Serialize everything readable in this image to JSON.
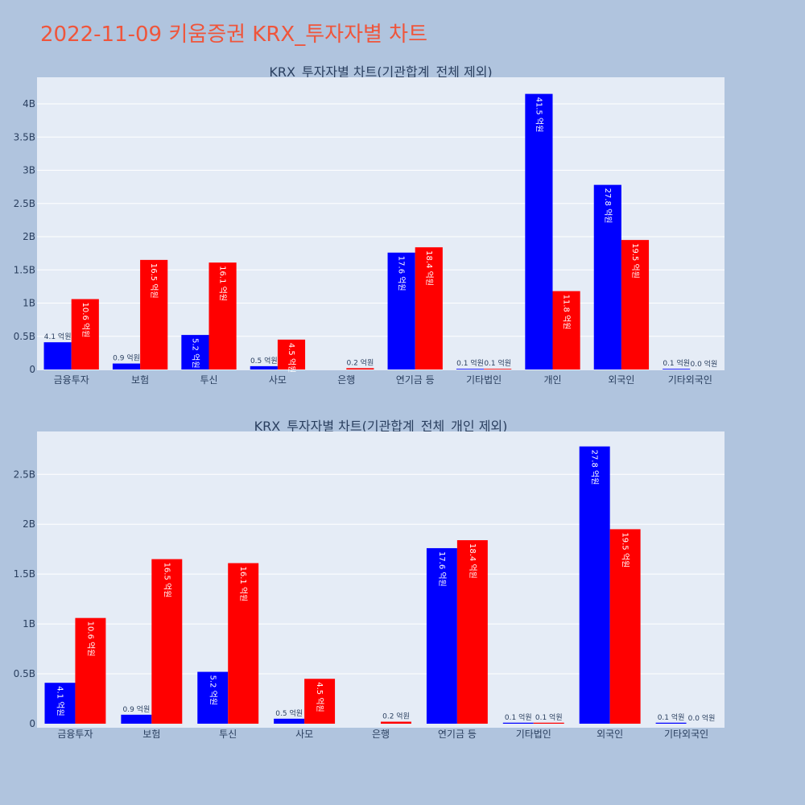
{
  "page_title": "2022-11-09 키움증권 KRX_투자자별 차트",
  "colors": {
    "series_a": "#0000ff",
    "series_b": "#ff0000",
    "plot_bg": "#e5ecf6",
    "page_bg": "#b0c4de",
    "title": "#ef553b"
  },
  "chart_data": [
    {
      "type": "bar",
      "title": "KRX_투자자별 차트(기관합계_전체 제외)",
      "categories": [
        "금융투자",
        "보험",
        "투신",
        "사모",
        "은행",
        "연기금 등",
        "기타법인",
        "개인",
        "외국인",
        "기타외국인"
      ],
      "ylim": [
        0,
        4.4
      ],
      "yticks": [
        "0",
        "0.5B",
        "1B",
        "1.5B",
        "2B",
        "2.5B",
        "3B",
        "3.5B",
        "4B"
      ],
      "ytick_values": [
        0,
        0.5,
        1,
        1.5,
        2,
        2.5,
        3,
        3.5,
        4
      ],
      "grid": true,
      "series": [
        {
          "values": [
            0.41,
            0.09,
            0.52,
            0.05,
            0,
            1.76,
            0.01,
            4.15,
            2.78,
            0.01
          ],
          "labels": [
            "4.1 억원",
            "0.9 억원",
            "5.2 억원",
            "0.5 억원",
            "",
            "17.6 억원",
            "0.1 억원",
            "41.5 억원",
            "27.8 억원",
            "0.1 억원"
          ]
        },
        {
          "values": [
            1.06,
            1.65,
            1.61,
            0.45,
            0.02,
            1.84,
            0.01,
            1.18,
            1.95,
            0
          ],
          "labels": [
            "10.6 억원",
            "16.5 억원",
            "16.1 억원",
            "4.5 억원",
            "0.2 억원",
            "18.4 억원",
            "0.1 억원",
            "11.8 억원",
            "19.5 억원",
            "0.0 억원"
          ]
        }
      ]
    },
    {
      "type": "bar",
      "title": "KRX_투자자별 차트(기관합계_전체_개인 제외)",
      "categories": [
        "금융투자",
        "보험",
        "투신",
        "사모",
        "은행",
        "연기금 등",
        "기타법인",
        "외국인",
        "기타외국인"
      ],
      "ylim": [
        0,
        2.93
      ],
      "yticks": [
        "0",
        "0.5B",
        "1B",
        "1.5B",
        "2B",
        "2.5B"
      ],
      "ytick_values": [
        0,
        0.5,
        1,
        1.5,
        2,
        2.5
      ],
      "grid": true,
      "series": [
        {
          "values": [
            0.41,
            0.09,
            0.52,
            0.05,
            0,
            1.76,
            0.01,
            2.78,
            0.01
          ],
          "labels": [
            "4.1 억원",
            "0.9 억원",
            "5.2 억원",
            "0.5 억원",
            "",
            "17.6 억원",
            "0.1 억원",
            "27.8 억원",
            "0.1 억원"
          ]
        },
        {
          "values": [
            1.06,
            1.65,
            1.61,
            0.45,
            0.02,
            1.84,
            0.01,
            1.95,
            0
          ],
          "labels": [
            "10.6 억원",
            "16.5 억원",
            "16.1 억원",
            "4.5 억원",
            "0.2 억원",
            "18.4 억원",
            "0.1 억원",
            "19.5 억원",
            "0.0 억원"
          ]
        }
      ]
    }
  ]
}
